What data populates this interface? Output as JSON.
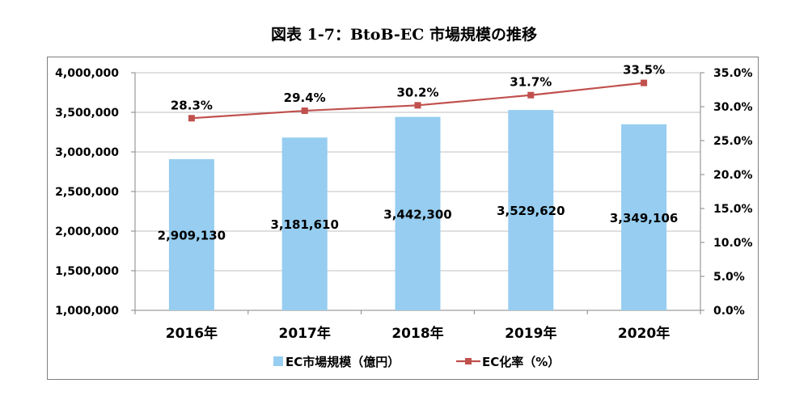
{
  "title": "図表 1-7：BtoB-EC 市場規模の推移",
  "chart_data": {
    "type": "bar",
    "categories": [
      "2016年",
      "2017年",
      "2018年",
      "2019年",
      "2020年"
    ],
    "series": [
      {
        "name": "EC市場規模（億円）",
        "type": "bar",
        "axis": "left",
        "values": [
          2909130,
          3181610,
          3442300,
          3529620,
          3349106
        ],
        "labels": [
          "2,909,130",
          "3,181,610",
          "3,442,300",
          "3,529,620",
          "3,349,106"
        ],
        "color": "#96cdf0"
      },
      {
        "name": "EC化率（%）",
        "type": "line",
        "axis": "right",
        "values": [
          28.3,
          29.4,
          30.2,
          31.7,
          33.5
        ],
        "labels": [
          "28.3%",
          "29.4%",
          "30.2%",
          "31.7%",
          "33.5%"
        ],
        "color": "#c0504d"
      }
    ],
    "y_left": {
      "lim": [
        1000000,
        4000000
      ],
      "ticks": [
        1000000,
        1500000,
        2000000,
        2500000,
        3000000,
        3500000,
        4000000
      ],
      "tick_labels": [
        "1,000,000",
        "1,500,000",
        "2,000,000",
        "2,500,000",
        "3,000,000",
        "3,500,000",
        "4,000,000"
      ]
    },
    "y_right": {
      "lim": [
        0,
        35
      ],
      "ticks": [
        0,
        5,
        10,
        15,
        20,
        25,
        30,
        35
      ],
      "tick_labels": [
        "0.0%",
        "5.0%",
        "10.0%",
        "15.0%",
        "20.0%",
        "25.0%",
        "30.0%",
        "35.0%"
      ]
    },
    "grid": true,
    "legend": "bottom"
  }
}
